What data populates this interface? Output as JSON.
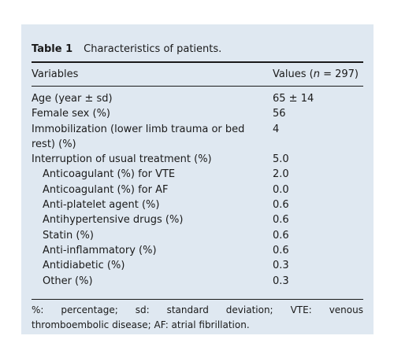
{
  "caption": {
    "label": "Table 1",
    "text": "Characteristics of patients."
  },
  "header": {
    "variables": "Variables",
    "values_prefix": "Values (",
    "values_n": "n",
    "values_suffix": " = 297)"
  },
  "rows": [
    {
      "variable": "Age (year ± sd)",
      "value": "65 ± 14",
      "indent": false
    },
    {
      "variable": "Female sex (%)",
      "value": "56",
      "indent": false
    },
    {
      "variable": "Immobilization (lower limb trauma or bed rest) (%)",
      "value": "4",
      "indent": false
    },
    {
      "variable": "Interruption of usual treatment (%)",
      "value": "5.0",
      "indent": false
    },
    {
      "variable": "Anticoagulant (%) for VTE",
      "value": "2.0",
      "indent": true
    },
    {
      "variable": "Anticoagulant (%) for AF",
      "value": "0.0",
      "indent": true
    },
    {
      "variable": "Anti-platelet agent (%)",
      "value": "0.6",
      "indent": true
    },
    {
      "variable": "Antihypertensive drugs (%)",
      "value": "0.6",
      "indent": true
    },
    {
      "variable": "Statin (%)",
      "value": "0.6",
      "indent": true
    },
    {
      "variable": "Anti-inflammatory (%)",
      "value": "0.6",
      "indent": true
    },
    {
      "variable": "Antidiabetic (%)",
      "value": "0.3",
      "indent": true
    },
    {
      "variable": "Other (%)",
      "value": "0.3",
      "indent": true
    }
  ],
  "footnote": {
    "line1": [
      "%:",
      "percentage;",
      "sd:",
      "standard",
      "deviation;",
      "VTE:",
      "venous"
    ],
    "line2": "thromboembolic disease; AF: atrial fibrillation."
  },
  "colors": {
    "panel_background": "#dfe8f1",
    "text": "#1a1a1a"
  }
}
